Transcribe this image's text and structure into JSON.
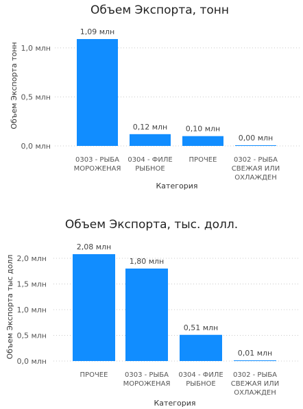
{
  "chart_data": [
    {
      "type": "bar",
      "title": "Объем Экспорта, тонн",
      "xlabel": "Категория",
      "ylabel": "Объем Экспорта тонн",
      "ylim": [
        0,
        1.09
      ],
      "grid": true,
      "bar_color": "#118dff",
      "yticks": [
        {
          "value": 0.0,
          "label": "0,0 млн"
        },
        {
          "value": 0.5,
          "label": "0,5 млн"
        },
        {
          "value": 1.0,
          "label": "1,0 млн"
        }
      ],
      "categories": [
        [
          "0303 - РЫБА",
          "МОРОЖЕНАЯ"
        ],
        [
          "0304 - ФИЛЕ",
          "РЫБНОЕ"
        ],
        [
          "ПРОЧЕЕ"
        ],
        [
          "0302 - РЫБА",
          "СВЕЖАЯ ИЛИ",
          "ОХЛАЖДЕН"
        ]
      ],
      "values": [
        1.09,
        0.12,
        0.1,
        0.004
      ],
      "data_labels": [
        "1,09 млн",
        "0,12 млн",
        "0,10 млн",
        "0,00 млн"
      ]
    },
    {
      "type": "bar",
      "title": "Объем Экспорта, тыс. долл.",
      "xlabel": "Категория",
      "ylabel": "Объем Экспорта тыс долл",
      "ylim": [
        0,
        2.08
      ],
      "grid": true,
      "bar_color": "#118dff",
      "yticks": [
        {
          "value": 0.0,
          "label": "0,0 млн"
        },
        {
          "value": 0.5,
          "label": "0,5 млн"
        },
        {
          "value": 1.0,
          "label": "1,0 млн"
        },
        {
          "value": 1.5,
          "label": "1,5 млн"
        },
        {
          "value": 2.0,
          "label": "2,0 млн"
        }
      ],
      "categories": [
        [
          "ПРОЧЕЕ"
        ],
        [
          "0303 - РЫБА",
          "МОРОЖЕНАЯ"
        ],
        [
          "0304 - ФИЛЕ",
          "РЫБНОЕ"
        ],
        [
          "0302 - РЫБА",
          "СВЕЖАЯ ИЛИ",
          "ОХЛАЖДЕН"
        ]
      ],
      "values": [
        2.08,
        1.8,
        0.51,
        0.01
      ],
      "data_labels": [
        "2,08 млн",
        "1,80 млн",
        "0,51 млн",
        "0,01 млн"
      ]
    }
  ]
}
